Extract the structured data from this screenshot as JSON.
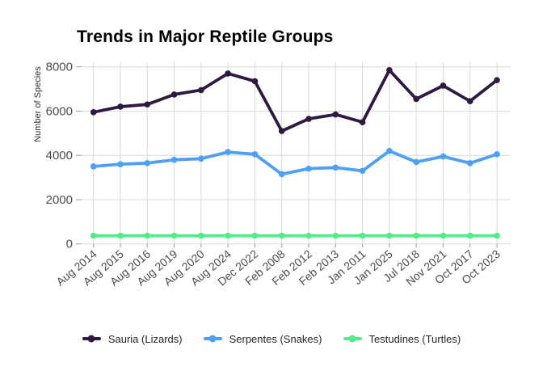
{
  "title": "Trends in Major Reptile Groups",
  "axes": {
    "y_title": "Number of Species",
    "y_tick_labels": [
      "0",
      "2000",
      "4000",
      "6000",
      "8000"
    ]
  },
  "chart_data": {
    "type": "line",
    "title": "Trends in Major Reptile Groups",
    "xlabel": "",
    "ylabel": "Number of Species",
    "ylim": [
      0,
      8000
    ],
    "yticks": [
      0,
      2000,
      4000,
      6000,
      8000
    ],
    "grid": true,
    "legend_position": "bottom",
    "x_tick_rotation": 40,
    "categories": [
      "Aug 2014",
      "Aug 2015",
      "Aug 2016",
      "Aug 2019",
      "Aug 2020",
      "Aug 2024",
      "Dec 2022",
      "Feb 2008",
      "Feb 2012",
      "Feb 2013",
      "Jan 2011",
      "Jan 2025",
      "Jul 2018",
      "Nov 2021",
      "Oct 2017",
      "Oct 2023"
    ],
    "series": [
      {
        "name": "Sauria (Lizards)",
        "color": "#2E1A40",
        "values": [
          5950,
          6200,
          6300,
          6750,
          6950,
          7700,
          7350,
          5100,
          5650,
          5850,
          5500,
          7850,
          6550,
          7150,
          6450,
          7400
        ]
      },
      {
        "name": "Serpentes (Snakes)",
        "color": "#4DA0F5",
        "values": [
          3500,
          3600,
          3650,
          3800,
          3850,
          4150,
          4050,
          3150,
          3400,
          3450,
          3300,
          4200,
          3700,
          3950,
          3650,
          4050
        ]
      },
      {
        "name": "Testudines (Turtles)",
        "color": "#52EC87",
        "values": [
          370,
          370,
          370,
          370,
          370,
          370,
          370,
          370,
          370,
          370,
          370,
          370,
          370,
          370,
          370,
          370
        ]
      }
    ]
  },
  "legend": {
    "items": [
      {
        "label": "Sauria (Lizards)",
        "color": "#2E1A40"
      },
      {
        "label": "Serpentes (Snakes)",
        "color": "#4DA0F5"
      },
      {
        "label": "Testudines (Turtles)",
        "color": "#52EC87"
      }
    ]
  },
  "colors": {
    "grid": "#d9d9d9",
    "tick_mark": "#999999",
    "tick_label": "#4d4d4d",
    "legend_text": "#262626",
    "background": "#ffffff"
  }
}
